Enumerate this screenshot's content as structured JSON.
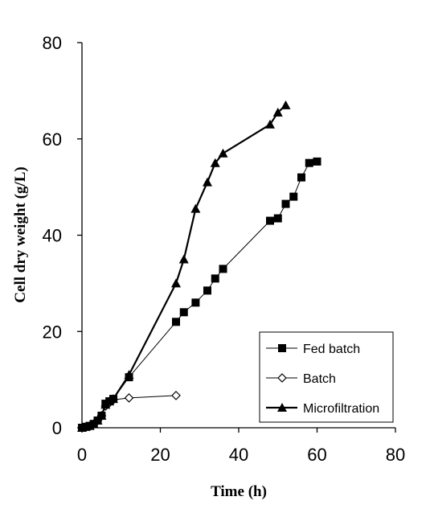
{
  "chart_data": {
    "type": "line",
    "xlabel": "Time (h)",
    "ylabel": "Cell dry weight (g/L)",
    "xlim": [
      0,
      80
    ],
    "ylim": [
      0,
      80
    ],
    "xticks": [
      0,
      20,
      40,
      60,
      80
    ],
    "yticks": [
      0,
      20,
      40,
      60,
      80
    ],
    "grid": false,
    "legend_position": "bottom-right",
    "series": [
      {
        "name": "Fed batch",
        "marker": "filled-square",
        "line_weight": "thin",
        "x": [
          0,
          1,
          2,
          3,
          4,
          5,
          6,
          7,
          8,
          12,
          24,
          26,
          29,
          32,
          34,
          36,
          48,
          50,
          52,
          54,
          56,
          58,
          60
        ],
        "y": [
          0,
          0.2,
          0.4,
          0.8,
          1.5,
          2.5,
          5,
          5.5,
          6,
          10.5,
          22,
          24,
          26,
          28.5,
          31,
          33,
          43,
          43.5,
          46.5,
          48,
          52,
          55,
          55.3
        ]
      },
      {
        "name": "Batch",
        "marker": "open-diamond",
        "line_weight": "thin",
        "x": [
          0,
          1,
          2,
          3,
          4,
          5,
          6,
          7,
          8,
          12,
          24
        ],
        "y": [
          0,
          0.2,
          0.4,
          0.8,
          1.5,
          2.5,
          4.5,
          5.2,
          5.8,
          6.2,
          6.7
        ]
      },
      {
        "name": "Microfiltration",
        "marker": "filled-triangle",
        "line_weight": "thick",
        "x": [
          0,
          1,
          2,
          3,
          4,
          5,
          6,
          7,
          8,
          12,
          24,
          26,
          29,
          32,
          34,
          36,
          48,
          50,
          52
        ],
        "y": [
          0,
          0.2,
          0.4,
          0.8,
          1.5,
          2.5,
          4.8,
          5.5,
          6,
          11,
          30,
          35,
          45.5,
          51,
          55,
          57,
          63,
          65.5,
          67
        ]
      }
    ]
  }
}
